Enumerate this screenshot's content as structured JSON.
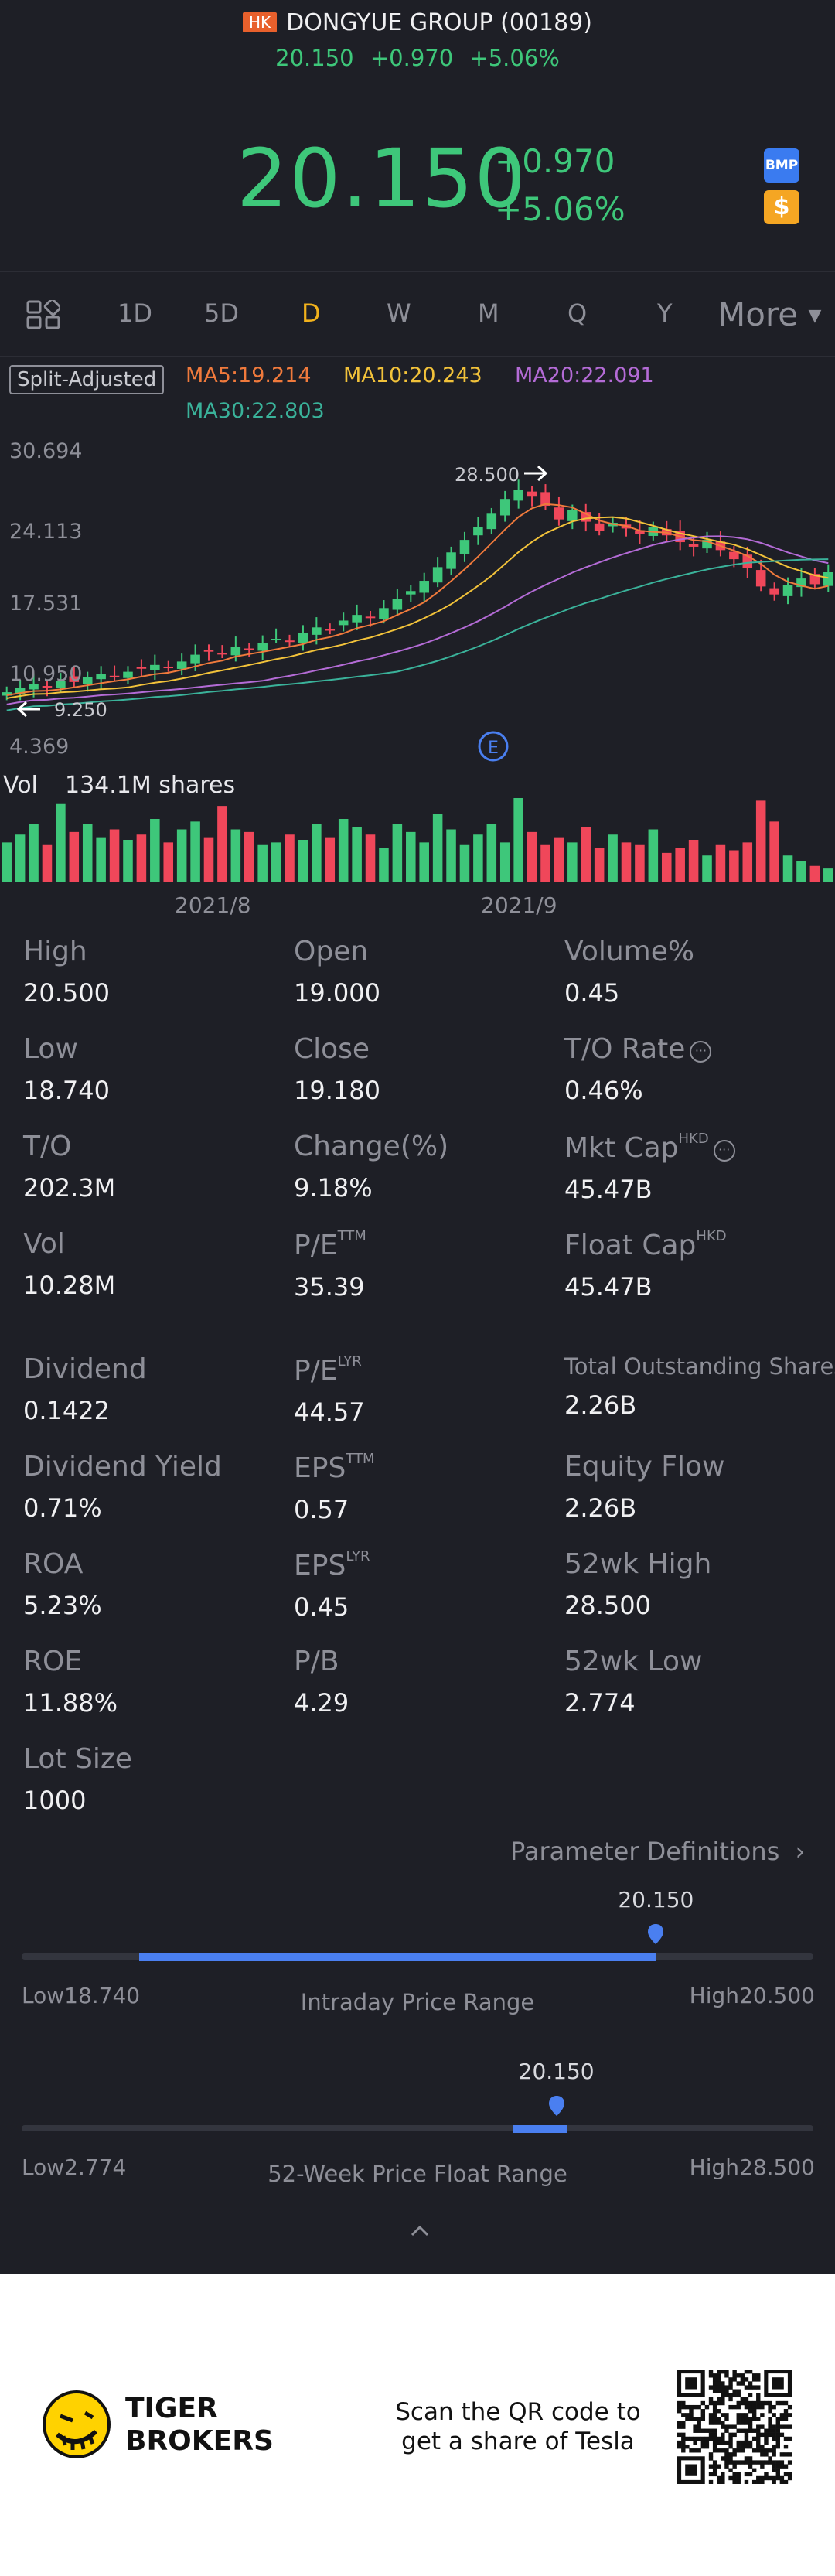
{
  "header": {
    "market_badge": "HK",
    "title": "DONGYUE GROUP (00189)",
    "price": "20.150",
    "change": "+0.970",
    "change_pct": "+5.06%",
    "side_icons": [
      "bmp-icon",
      "dollar-icon"
    ],
    "bmp_label": "BMP",
    "dollar_label": "$"
  },
  "tabs": {
    "items": [
      "1D",
      "5D",
      "D",
      "W",
      "M",
      "Q",
      "Y"
    ],
    "active": "D",
    "more_label": "More"
  },
  "indicators": {
    "split_adjusted": "Split-Adjusted",
    "ma5": "MA5:19.214",
    "ma10": "MA10:20.243",
    "ma20": "MA20:22.091",
    "ma30": "MA30:22.803",
    "colors": {
      "ma5": "#f07a3c",
      "ma10": "#f2c23a",
      "ma20": "#b46bd6",
      "ma30": "#3ab29a"
    }
  },
  "chart_data": {
    "type": "candlestick",
    "y_axis_labels": [
      "30.694",
      "24.113",
      "17.531",
      "10.950",
      "4.369"
    ],
    "x_axis_labels": [
      "2021/8",
      "2021/9"
    ],
    "high_marker": "28.500",
    "low_marker": "9.250",
    "event_marker": "E",
    "volume_label": "Vol",
    "volume_value": "134.1M shares",
    "up_color": "#3ec77a",
    "down_color": "#f0475a",
    "closes": [
      9.6,
      10.0,
      10.3,
      10.1,
      10.6,
      10.5,
      10.9,
      11.2,
      11.0,
      11.4,
      11.7,
      12.0,
      11.8,
      12.3,
      12.9,
      13.2,
      13.0,
      13.6,
      13.4,
      13.9,
      14.3,
      14.1,
      14.8,
      15.3,
      15.1,
      15.9,
      16.4,
      16.2,
      17.0,
      17.8,
      18.5,
      19.4,
      20.6,
      21.9,
      23.0,
      24.1,
      25.3,
      26.6,
      27.4,
      26.8,
      26.0,
      24.8,
      25.6,
      24.6,
      23.8,
      24.5,
      24.0,
      23.5,
      24.1,
      23.4,
      22.8,
      22.4,
      23.0,
      22.1,
      21.3,
      20.5,
      18.9,
      18.2,
      19.0,
      19.6,
      19.1,
      20.15
    ],
    "volumes": [
      30,
      36,
      44,
      28,
      60,
      38,
      44,
      34,
      40,
      32,
      36,
      48,
      30,
      40,
      46,
      34,
      58,
      40,
      38,
      28,
      30,
      36,
      32,
      44,
      34,
      48,
      42,
      36,
      26,
      44,
      38,
      30,
      52,
      40,
      28,
      36,
      44,
      30,
      64,
      38,
      28,
      34,
      30,
      42,
      26,
      36,
      30,
      28,
      40,
      22,
      26,
      32,
      20,
      28,
      24,
      30,
      62,
      46,
      20,
      16,
      12,
      10
    ]
  },
  "stats": [
    {
      "label": "High",
      "value": "20.500"
    },
    {
      "label": "Open",
      "value": "19.000"
    },
    {
      "label": "Volume%",
      "value": "0.45"
    },
    {
      "label": "Low",
      "value": "18.740"
    },
    {
      "label": "Close",
      "value": "19.180"
    },
    {
      "label": "T/O Rate",
      "value": "0.46%"
    },
    {
      "label": "T/O",
      "value": "202.3M"
    },
    {
      "label": "Change(%)",
      "value": "9.18%"
    },
    {
      "label": "Mkt Cap",
      "sup": "HKD",
      "value": "45.47B"
    },
    {
      "label": "Vol",
      "value": "10.28M"
    },
    {
      "label": "P/E",
      "sup": "TTM",
      "value": "35.39"
    },
    {
      "label": "Float Cap",
      "sup": "HKD",
      "value": "45.47B"
    },
    {
      "label": "Dividend",
      "value": "0.1422"
    },
    {
      "label": "P/E",
      "sup": "LYR",
      "value": "44.57"
    },
    {
      "label": "Total Outstanding Shares",
      "value": "2.26B"
    },
    {
      "label": "Dividend Yield",
      "value": "0.71%"
    },
    {
      "label": "EPS",
      "sup": "TTM",
      "value": "0.57"
    },
    {
      "label": "Equity Flow",
      "value": "2.26B"
    },
    {
      "label": "ROA",
      "value": "5.23%"
    },
    {
      "label": "EPS",
      "sup": "LYR",
      "value": "0.45"
    },
    {
      "label": "52wk High",
      "value": "28.500"
    },
    {
      "label": "ROE",
      "value": "11.88%"
    },
    {
      "label": "P/B",
      "value": "4.29"
    },
    {
      "label": "52wk Low",
      "value": "2.774"
    },
    {
      "label": "Lot Size",
      "value": "1000"
    }
  ],
  "parameter_definitions": "Parameter Definitions",
  "intraday_range": {
    "title": "Intraday Price Range",
    "low_label": "Low18.740",
    "high_label": "High20.500",
    "current": "20.150",
    "low": 18.74,
    "high": 20.5,
    "value": 20.15
  },
  "week52_range": {
    "title": "52-Week Price Float Range",
    "low_label": "Low2.774",
    "high_label": "High28.500",
    "current": "20.150",
    "low": 2.774,
    "high": 28.5,
    "value": 20.15
  },
  "footer": {
    "brand_line1": "TIGER",
    "brand_line2": "BROKERS",
    "qr_line1": "Scan the QR code to",
    "qr_line2": "get a share of Tesla"
  }
}
